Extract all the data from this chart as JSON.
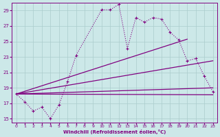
{
  "background_color": "#cce8e8",
  "grid_color": "#aacccc",
  "line_color": "#800080",
  "xlabel": "Windchill (Refroidissement éolien,°C)",
  "xlabel_color": "#800080",
  "tick_color": "#800080",
  "xlim": [
    -0.5,
    23.5
  ],
  "ylim": [
    14.5,
    30.0
  ],
  "yticks": [
    15,
    17,
    19,
    21,
    23,
    25,
    27,
    29
  ],
  "xticks": [
    0,
    1,
    2,
    3,
    4,
    5,
    6,
    7,
    8,
    9,
    10,
    11,
    12,
    13,
    14,
    15,
    16,
    17,
    18,
    19,
    20,
    21,
    22,
    23
  ],
  "main_x": [
    0,
    1,
    2,
    3,
    4,
    5,
    6,
    7,
    10,
    11,
    12,
    13,
    14,
    15,
    16,
    17,
    18,
    19,
    20,
    21,
    22,
    23
  ],
  "main_y": [
    18.2,
    17.2,
    16.0,
    16.5,
    15.0,
    16.8,
    19.8,
    23.2,
    29.1,
    29.1,
    29.8,
    24.1,
    28.1,
    27.5,
    28.1,
    27.9,
    26.2,
    25.2,
    22.5,
    22.8,
    20.5,
    18.5
  ],
  "line1_x": [
    0,
    20
  ],
  "line1_y": [
    18.2,
    25.3
  ],
  "line2_x": [
    0,
    23
  ],
  "line2_y": [
    18.2,
    22.5
  ],
  "line3_x": [
    0,
    23
  ],
  "line3_y": [
    18.2,
    19.0
  ],
  "line4_x": [
    0,
    23
  ],
  "line4_y": [
    18.2,
    18.1
  ]
}
